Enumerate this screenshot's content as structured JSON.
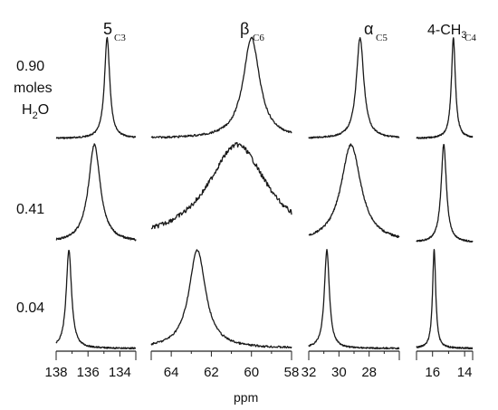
{
  "chart_data": {
    "type": "line",
    "xlabel": "ppm",
    "row_labels": [
      [
        "0.90",
        "moles",
        "H",
        "2",
        "O"
      ],
      [
        "0.41"
      ],
      [
        "0.04"
      ]
    ],
    "panels": [
      {
        "label": "5",
        "label_sub": "",
        "carbon": "C3",
        "xlim": [
          138,
          133
        ],
        "ticks": [
          "138",
          "136",
          "134"
        ],
        "tick_values": [
          138,
          136,
          134
        ],
        "peaks": [
          {
            "row": "0.90",
            "center_ppm": 134.8,
            "width_ppm": 0.2
          },
          {
            "row": "0.41",
            "center_ppm": 135.6,
            "width_ppm": 0.45
          },
          {
            "row": "0.04",
            "center_ppm": 137.2,
            "width_ppm": 0.2
          }
        ]
      },
      {
        "label": "β",
        "label_sub": "",
        "carbon": "C6",
        "xlim": [
          65,
          58
        ],
        "ticks": [
          "64",
          "62",
          "60",
          "58"
        ],
        "tick_values": [
          64,
          62,
          60,
          58
        ],
        "peaks": [
          {
            "row": "0.90",
            "center_ppm": 60.0,
            "width_ppm": 0.5
          },
          {
            "row": "0.41",
            "center_ppm": 60.7,
            "width_ppm": 1.8
          },
          {
            "row": "0.04",
            "center_ppm": 62.7,
            "width_ppm": 0.5
          }
        ]
      },
      {
        "label": "α",
        "label_sub": "",
        "carbon": "C5",
        "xlim": [
          32,
          26
        ],
        "ticks": [
          "32",
          "30",
          "28"
        ],
        "tick_values": [
          32,
          30,
          28
        ],
        "peaks": [
          {
            "row": "0.90",
            "center_ppm": 28.6,
            "width_ppm": 0.3
          },
          {
            "row": "0.41",
            "center_ppm": 29.2,
            "width_ppm": 0.8
          },
          {
            "row": "0.04",
            "center_ppm": 30.8,
            "width_ppm": 0.2
          }
        ]
      },
      {
        "label": "4-CH",
        "label_sub": "3",
        "carbon": "C4",
        "xlim": [
          17,
          13.5
        ],
        "ticks": [
          "16",
          "14"
        ],
        "tick_values": [
          16,
          14
        ],
        "peaks": [
          {
            "row": "0.90",
            "center_ppm": 14.7,
            "width_ppm": 0.15
          },
          {
            "row": "0.41",
            "center_ppm": 15.3,
            "width_ppm": 0.2
          },
          {
            "row": "0.04",
            "center_ppm": 15.9,
            "width_ppm": 0.12
          }
        ]
      }
    ]
  }
}
